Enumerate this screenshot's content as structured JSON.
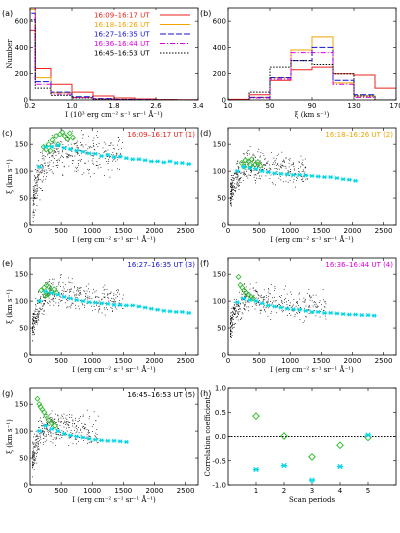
{
  "colors": {
    "p1": "#e8221b",
    "p2": "#f0a500",
    "p3": "#1010d0",
    "p4": "#e000e0",
    "p5": "#000000",
    "cyan": "#00d8e8",
    "green": "#22bb22",
    "scatter": "#000000"
  },
  "chart_data": [
    {
      "id": "a",
      "type": "line",
      "panel_label": "(a)",
      "xlabel": "I (10³ erg cm⁻² s⁻¹ sr⁻¹ Å⁻¹)",
      "ylabel": "Number",
      "xlim": [
        0.2,
        3.4
      ],
      "ylim": [
        0,
        700
      ],
      "xticks": [
        0.2,
        1.0,
        1.8,
        2.6,
        3.4
      ],
      "yticks": [
        0,
        200,
        400,
        600
      ],
      "xtick_labels": [
        "0.2",
        "1.0",
        "1.8",
        "2.6",
        "3.4"
      ],
      "ytick_labels": [
        "0",
        "200",
        "400",
        "600"
      ],
      "bin_edges": [
        0.2,
        0.3,
        0.6,
        1.0,
        1.4,
        1.8,
        2.2,
        2.6,
        3.0,
        3.4
      ],
      "legend_position": "top-right",
      "series": [
        {
          "name": "16:09–16:17 UT",
          "values": [
            530,
            240,
            120,
            60,
            30,
            15,
            8,
            4,
            2
          ]
        },
        {
          "name": "16:18–16:26 UT",
          "values": [
            690,
            170,
            55,
            20,
            8,
            4,
            2,
            1,
            0
          ]
        },
        {
          "name": "16:27–16:35 UT",
          "values": [
            660,
            140,
            60,
            25,
            10,
            5,
            3,
            1,
            0
          ]
        },
        {
          "name": "16:36–16:44 UT",
          "values": [
            720,
            120,
            45,
            18,
            7,
            3,
            1,
            0,
            0
          ]
        },
        {
          "name": "16:45–16:53 UT",
          "values": [
            610,
            90,
            35,
            15,
            6,
            3,
            1,
            0,
            0
          ]
        }
      ]
    },
    {
      "id": "b",
      "type": "line",
      "panel_label": "(b)",
      "xlabel": "ξ (km s⁻¹)",
      "ylabel": "",
      "xlim": [
        10,
        170
      ],
      "ylim": [
        0,
        700
      ],
      "xticks": [
        10,
        50,
        90,
        130,
        170
      ],
      "yticks": [
        0,
        200,
        400,
        600
      ],
      "xtick_labels": [
        "10",
        "50",
        "90",
        "130",
        "170"
      ],
      "ytick_labels": [
        "0",
        "200",
        "400",
        "600"
      ],
      "bin_edges": [
        10,
        30,
        50,
        70,
        90,
        110,
        130,
        150,
        170
      ],
      "series": [
        {
          "name": "16:09–16:17 UT",
          "values": [
            5,
            40,
            150,
            230,
            250,
            200,
            190,
            90
          ]
        },
        {
          "name": "16:18–16:26 UT",
          "values": [
            0,
            20,
            170,
            380,
            480,
            130,
            30,
            0
          ]
        },
        {
          "name": "16:27–16:35 UT",
          "values": [
            0,
            20,
            170,
            300,
            400,
            150,
            40,
            0
          ]
        },
        {
          "name": "16:36–16:44 UT",
          "values": [
            0,
            15,
            160,
            360,
            360,
            120,
            20,
            0
          ]
        },
        {
          "name": "16:45–16:53 UT",
          "values": [
            0,
            60,
            250,
            300,
            270,
            200,
            30,
            0
          ]
        }
      ]
    },
    {
      "id": "c",
      "type": "scatter",
      "panel_label": "(c)",
      "period_label": "16:09–16:17 UT (1)",
      "xlabel": "I (erg cm⁻² s⁻¹ sr⁻¹ Å⁻¹)",
      "ylabel": "ξ (km s⁻¹)",
      "xlim": [
        0,
        2700
      ],
      "ylim": [
        0,
        180
      ],
      "xticks": [
        0,
        500,
        1000,
        1500,
        2000,
        2500
      ],
      "yticks": [
        0,
        50,
        100,
        150
      ],
      "xtick_labels": [
        "0",
        "500",
        "1000",
        "1500",
        "2000",
        "2500"
      ],
      "ytick_labels": [
        "0",
        "50",
        "100",
        "150"
      ],
      "cyan_x": [
        150,
        250,
        350,
        450,
        550,
        650,
        750,
        850,
        950,
        1050,
        1150,
        1250,
        1350,
        1450,
        1550,
        1650,
        1750,
        1850,
        1950,
        2050,
        2150,
        2250,
        2350,
        2450,
        2550
      ],
      "cyan_y": [
        108,
        145,
        145,
        148,
        143,
        141,
        138,
        136,
        133,
        132,
        128,
        130,
        126,
        127,
        124,
        122,
        122,
        120,
        118,
        118,
        116,
        118,
        115,
        115,
        113
      ],
      "green_x": [
        220,
        300,
        360,
        420,
        480,
        520,
        560,
        600,
        640,
        690,
        260,
        330,
        450
      ],
      "green_y": [
        145,
        150,
        158,
        165,
        168,
        172,
        165,
        160,
        170,
        162,
        140,
        138,
        150
      ],
      "cloud": {
        "xmin": 50,
        "xmax": 1500,
        "peak_x": 400,
        "peak_y": 140,
        "low_y": 40,
        "count": 420,
        "spread": 18
      }
    },
    {
      "id": "d",
      "type": "scatter",
      "panel_label": "(d)",
      "period_label": "16:18–16:26 UT (2)",
      "xlabel": "I (erg cm⁻² s⁻¹ sr⁻¹ Å⁻¹)",
      "ylabel": "",
      "xlim": [
        0,
        2700
      ],
      "ylim": [
        0,
        180
      ],
      "xticks": [
        0,
        500,
        1000,
        1500,
        2000,
        2500
      ],
      "yticks": [
        0,
        50,
        100,
        150
      ],
      "xtick_labels": [
        "0",
        "500",
        "1000",
        "1500",
        "2000",
        "2500"
      ],
      "ytick_labels": [
        "0",
        "50",
        "100",
        "150"
      ],
      "cyan_x": [
        150,
        250,
        350,
        450,
        550,
        650,
        750,
        850,
        950,
        1050,
        1150,
        1250,
        1350,
        1450,
        1550,
        1650,
        1750,
        1850,
        1950,
        2050
      ],
      "cyan_y": [
        100,
        108,
        106,
        104,
        100,
        98,
        96,
        95,
        94,
        93,
        93,
        92,
        91,
        90,
        89,
        89,
        87,
        85,
        84,
        82
      ],
      "green_x": [
        220,
        280,
        330,
        380,
        430,
        480,
        520,
        260,
        350
      ],
      "green_y": [
        115,
        120,
        118,
        122,
        112,
        117,
        110,
        108,
        112
      ],
      "cloud": {
        "xmin": 40,
        "xmax": 1300,
        "peak_x": 300,
        "peak_y": 110,
        "low_y": 50,
        "count": 420,
        "spread": 14
      }
    },
    {
      "id": "e",
      "type": "scatter",
      "panel_label": "(e)",
      "period_label": "16:27–16:35 UT (3)",
      "xlabel": "I (erg cm⁻² s⁻¹ sr⁻¹ Å⁻¹)",
      "ylabel": "ξ (km s⁻¹)",
      "xlim": [
        0,
        2700
      ],
      "ylim": [
        0,
        180
      ],
      "xticks": [
        0,
        500,
        1000,
        1500,
        2000,
        2500
      ],
      "yticks": [
        0,
        50,
        100,
        150
      ],
      "xtick_labels": [
        "0",
        "500",
        "1000",
        "1500",
        "2000",
        "2500"
      ],
      "ytick_labels": [
        "0",
        "50",
        "100",
        "150"
      ],
      "cyan_x": [
        150,
        250,
        350,
        450,
        550,
        650,
        750,
        850,
        950,
        1050,
        1150,
        1250,
        1350,
        1450,
        1550,
        1650,
        1750,
        1850,
        1950,
        2050,
        2150,
        2250,
        2350,
        2450,
        2550
      ],
      "cyan_y": [
        100,
        118,
        115,
        112,
        108,
        105,
        102,
        100,
        98,
        97,
        96,
        95,
        93,
        93,
        92,
        92,
        90,
        88,
        86,
        84,
        82,
        81,
        80,
        80,
        78
      ],
      "green_x": [
        180,
        230,
        270,
        310,
        350,
        390,
        430,
        250,
        290
      ],
      "green_y": [
        120,
        125,
        130,
        126,
        118,
        122,
        115,
        110,
        112
      ],
      "cloud": {
        "xmin": 40,
        "xmax": 1500,
        "peak_x": 300,
        "peak_y": 115,
        "low_y": 50,
        "count": 420,
        "spread": 14
      }
    },
    {
      "id": "f",
      "type": "scatter",
      "panel_label": "(f)",
      "period_label": "16:36–16:44 UT (4)",
      "xlabel": "I (erg cm⁻² s⁻¹ sr⁻¹ Å⁻¹)",
      "ylabel": "",
      "xlim": [
        0,
        2700
      ],
      "ylim": [
        0,
        180
      ],
      "xticks": [
        0,
        500,
        1000,
        1500,
        2000,
        2500
      ],
      "yticks": [
        0,
        50,
        100,
        150
      ],
      "xtick_labels": [
        "0",
        "500",
        "1000",
        "1500",
        "2000",
        "2500"
      ],
      "ytick_labels": [
        "0",
        "50",
        "100",
        "150"
      ],
      "cyan_x": [
        150,
        250,
        350,
        450,
        550,
        650,
        750,
        850,
        950,
        1050,
        1150,
        1250,
        1350,
        1450,
        1550,
        1650,
        1750,
        1850,
        1950,
        2050,
        2150,
        2250,
        2350
      ],
      "cyan_y": [
        98,
        105,
        102,
        100,
        96,
        92,
        90,
        88,
        86,
        85,
        84,
        82,
        80,
        80,
        78,
        78,
        77,
        76,
        75,
        75,
        74,
        74,
        73
      ],
      "green_x": [
        170,
        200,
        230,
        260,
        290,
        330,
        370,
        400
      ],
      "green_y": [
        145,
        130,
        125,
        120,
        115,
        112,
        108,
        105
      ],
      "cloud": {
        "xmin": 40,
        "xmax": 1600,
        "peak_x": 280,
        "peak_y": 105,
        "low_y": 50,
        "count": 420,
        "spread": 13
      }
    },
    {
      "id": "g",
      "type": "scatter",
      "panel_label": "(g)",
      "period_label": "16:45–16:53 UT (5)",
      "xlabel": "I (erg cm⁻² s⁻¹ sr⁻¹ Å⁻¹)",
      "ylabel": "ξ (km s⁻¹)",
      "xlim": [
        0,
        2700
      ],
      "ylim": [
        0,
        180
      ],
      "xticks": [
        0,
        500,
        1000,
        1500,
        2000,
        2500
      ],
      "yticks": [
        0,
        50,
        100,
        150
      ],
      "xtick_labels": [
        "0",
        "500",
        "1000",
        "1500",
        "2000",
        "2500"
      ],
      "ytick_labels": [
        "0",
        "50",
        "100",
        "150"
      ],
      "cyan_x": [
        150,
        250,
        350,
        450,
        550,
        650,
        750,
        850,
        950,
        1050,
        1150,
        1250,
        1350,
        1450,
        1550
      ],
      "cyan_y": [
        100,
        110,
        104,
        100,
        95,
        92,
        90,
        88,
        86,
        84,
        83,
        82,
        82,
        81,
        80
      ],
      "green_x": [
        120,
        150,
        170,
        200,
        230,
        260,
        300,
        350,
        400
      ],
      "green_y": [
        160,
        150,
        145,
        140,
        135,
        128,
        120,
        115,
        110
      ],
      "cloud": {
        "xmin": 40,
        "xmax": 1100,
        "peak_x": 250,
        "peak_y": 110,
        "low_y": 40,
        "count": 380,
        "spread": 15
      }
    },
    {
      "id": "h",
      "type": "scatter",
      "panel_label": "(h)",
      "xlabel": "Scan periods",
      "ylabel": "Correlation coefficient",
      "xlim": [
        0,
        6
      ],
      "ylim": [
        -1.0,
        1.0
      ],
      "xticks": [
        1,
        2,
        3,
        4,
        5
      ],
      "yticks": [
        -1.0,
        -0.5,
        0.0,
        0.5,
        1.0
      ],
      "xtick_labels": [
        "1",
        "2",
        "3",
        "4",
        "5"
      ],
      "ytick_labels": [
        "-1.0",
        "-0.5",
        "0.0",
        "0.5",
        "1.0"
      ],
      "zero_line": true,
      "series": [
        {
          "marker": "diamond",
          "color": "green",
          "x": [
            1,
            2,
            3,
            4,
            5
          ],
          "y": [
            0.42,
            0.01,
            -0.42,
            -0.18,
            -0.02
          ]
        },
        {
          "marker": "asterisk",
          "color": "cyan",
          "x": [
            1,
            2,
            3,
            4,
            5
          ],
          "y": [
            -0.68,
            -0.6,
            -0.9,
            -0.62,
            0.03
          ]
        }
      ]
    }
  ]
}
